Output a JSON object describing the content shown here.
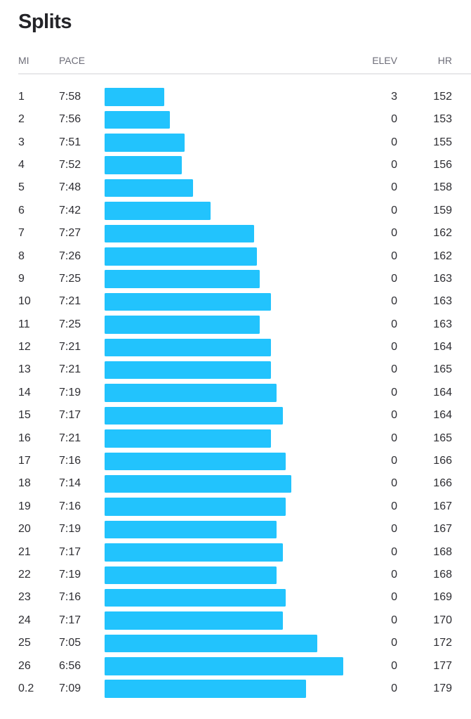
{
  "title": "Splits",
  "headers": {
    "mi": "MI",
    "pace": "PACE",
    "elev": "ELEV",
    "hr": "HR"
  },
  "bar_color": "#22c3fd",
  "splits": [
    {
      "mi": "1",
      "pace": "7:58",
      "elev": "3",
      "hr": "152"
    },
    {
      "mi": "2",
      "pace": "7:56",
      "elev": "0",
      "hr": "153"
    },
    {
      "mi": "3",
      "pace": "7:51",
      "elev": "0",
      "hr": "155"
    },
    {
      "mi": "4",
      "pace": "7:52",
      "elev": "0",
      "hr": "156"
    },
    {
      "mi": "5",
      "pace": "7:48",
      "elev": "0",
      "hr": "158"
    },
    {
      "mi": "6",
      "pace": "7:42",
      "elev": "0",
      "hr": "159"
    },
    {
      "mi": "7",
      "pace": "7:27",
      "elev": "0",
      "hr": "162"
    },
    {
      "mi": "8",
      "pace": "7:26",
      "elev": "0",
      "hr": "162"
    },
    {
      "mi": "9",
      "pace": "7:25",
      "elev": "0",
      "hr": "163"
    },
    {
      "mi": "10",
      "pace": "7:21",
      "elev": "0",
      "hr": "163"
    },
    {
      "mi": "11",
      "pace": "7:25",
      "elev": "0",
      "hr": "163"
    },
    {
      "mi": "12",
      "pace": "7:21",
      "elev": "0",
      "hr": "164"
    },
    {
      "mi": "13",
      "pace": "7:21",
      "elev": "0",
      "hr": "165"
    },
    {
      "mi": "14",
      "pace": "7:19",
      "elev": "0",
      "hr": "164"
    },
    {
      "mi": "15",
      "pace": "7:17",
      "elev": "0",
      "hr": "164"
    },
    {
      "mi": "16",
      "pace": "7:21",
      "elev": "0",
      "hr": "165"
    },
    {
      "mi": "17",
      "pace": "7:16",
      "elev": "0",
      "hr": "166"
    },
    {
      "mi": "18",
      "pace": "7:14",
      "elev": "0",
      "hr": "166"
    },
    {
      "mi": "19",
      "pace": "7:16",
      "elev": "0",
      "hr": "167"
    },
    {
      "mi": "20",
      "pace": "7:19",
      "elev": "0",
      "hr": "167"
    },
    {
      "mi": "21",
      "pace": "7:17",
      "elev": "0",
      "hr": "168"
    },
    {
      "mi": "22",
      "pace": "7:19",
      "elev": "0",
      "hr": "168"
    },
    {
      "mi": "23",
      "pace": "7:16",
      "elev": "0",
      "hr": "169"
    },
    {
      "mi": "24",
      "pace": "7:17",
      "elev": "0",
      "hr": "170"
    },
    {
      "mi": "25",
      "pace": "7:05",
      "elev": "0",
      "hr": "172"
    },
    {
      "mi": "26",
      "pace": "6:56",
      "elev": "0",
      "hr": "177"
    },
    {
      "mi": "0.2",
      "pace": "7:09",
      "elev": "0",
      "hr": "179"
    }
  ]
}
